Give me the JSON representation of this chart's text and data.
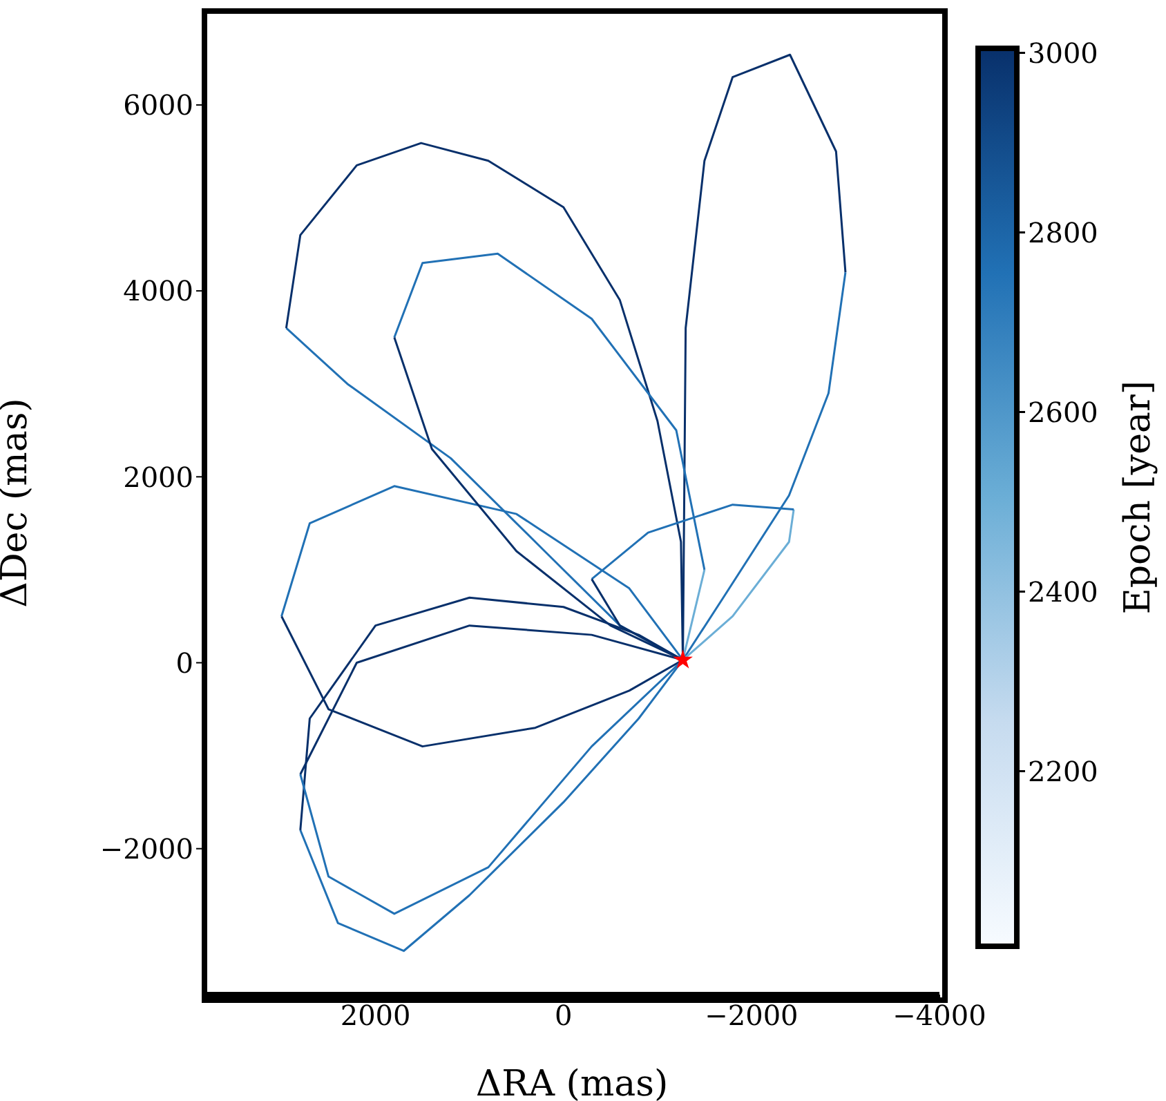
{
  "chart_data": {
    "type": "line",
    "xlabel": "ΔRA (mas)",
    "ylabel": "ΔDec (mas)",
    "clabel": "Epoch [year]",
    "xlim": [
      3820,
      -4000
    ],
    "xticks": [
      2000,
      0,
      {
        "value": -2000,
        "label": "−2000"
      },
      {
        "value": -4000,
        "label": "−4000"
      }
    ],
    "ylim": [
      -3570,
      7010
    ],
    "yticks": [
      {
        "value": -2000,
        "label": "−2000"
      },
      0,
      2000,
      4000,
      6000
    ],
    "clim": [
      2005,
      3005
    ],
    "cticks": [
      2200,
      2400,
      2600,
      2800,
      3000
    ],
    "grid": false,
    "marker": "none",
    "line_style": "solid",
    "series": [
      {
        "color": "#2171b5",
        "x": [
          -1270,
          -600,
          200,
          1200,
          2300,
          2950
        ],
        "values": [
          30,
          400,
          1200,
          2200,
          3000,
          3600
        ]
      },
      {
        "color": "#08306b",
        "x": [
          2950,
          2800,
          2200,
          1515,
          800,
          0,
          -600,
          -1000,
          -1250,
          -1270
        ],
        "values": [
          3600,
          4600,
          5350,
          5590,
          5400,
          4900,
          3900,
          2600,
          1300,
          30
        ]
      },
      {
        "color": "#2171b5",
        "x": [
          -1270,
          -1700,
          -2400,
          -2820,
          -3000
        ],
        "values": [
          30,
          700,
          1800,
          2900,
          4200
        ]
      },
      {
        "color": "#08306b",
        "x": [
          -3000,
          -2900,
          -2410,
          -1800,
          -1500,
          -1300,
          -1285,
          -1270
        ],
        "values": [
          4200,
          5500,
          6540,
          6300,
          5400,
          3600,
          1800,
          30
        ]
      },
      {
        "color": "#2171b5",
        "x": [
          -1270,
          -800,
          0,
          1000,
          1700,
          2400,
          2800
        ],
        "values": [
          30,
          -600,
          -1500,
          -2500,
          -3100,
          -2800,
          -1800
        ]
      },
      {
        "color": "#08306b",
        "x": [
          2800,
          2700,
          2000,
          1000,
          0,
          -800,
          -1270
        ],
        "values": [
          -1800,
          -600,
          400,
          700,
          600,
          300,
          30
        ]
      },
      {
        "color": "#2171b5",
        "x": [
          -1270,
          -700,
          500,
          1800,
          2700,
          3000
        ],
        "values": [
          30,
          800,
          1600,
          1900,
          1500,
          500
        ]
      },
      {
        "color": "#08306b",
        "x": [
          3000,
          2500,
          1500,
          300,
          -700,
          -1270
        ],
        "values": [
          500,
          -500,
          -900,
          -700,
          -300,
          30
        ]
      },
      {
        "color": "#6baed6",
        "x": [
          -1270,
          -1800,
          -2400,
          -2450
        ],
        "values": [
          30,
          500,
          1300,
          1650
        ]
      },
      {
        "color": "#2171b5",
        "x": [
          -2450,
          -1800,
          -900,
          -300
        ],
        "values": [
          1650,
          1700,
          1400,
          900
        ]
      },
      {
        "color": "#08306b",
        "x": [
          -300,
          -600,
          -1270
        ],
        "values": [
          900,
          400,
          30
        ]
      },
      {
        "color": "#6baed6",
        "x": [
          -1270,
          -1500
        ],
        "values": [
          30,
          1000
        ]
      },
      {
        "color": "#2171b5",
        "x": [
          -1500,
          -1200,
          -300,
          700,
          1500,
          1800
        ],
        "values": [
          1000,
          2500,
          3700,
          4400,
          4300,
          3500
        ]
      },
      {
        "color": "#08306b",
        "x": [
          1800,
          1400,
          500,
          -500,
          -1270
        ],
        "values": [
          3500,
          2300,
          1200,
          400,
          30
        ]
      },
      {
        "color": "#2171b5",
        "x": [
          -1270,
          -300,
          800,
          1800,
          2500,
          2800
        ],
        "values": [
          30,
          -900,
          -2200,
          -2700,
          -2300,
          -1200
        ]
      },
      {
        "color": "#08306b",
        "x": [
          2800,
          2200,
          1000,
          -300,
          -1270
        ],
        "values": [
          -1200,
          0,
          400,
          300,
          30
        ]
      },
      {
        "type": "scatter",
        "marker": "star",
        "color": "#ff0000",
        "x": [
          -1270
        ],
        "values": [
          30
        ]
      }
    ]
  }
}
